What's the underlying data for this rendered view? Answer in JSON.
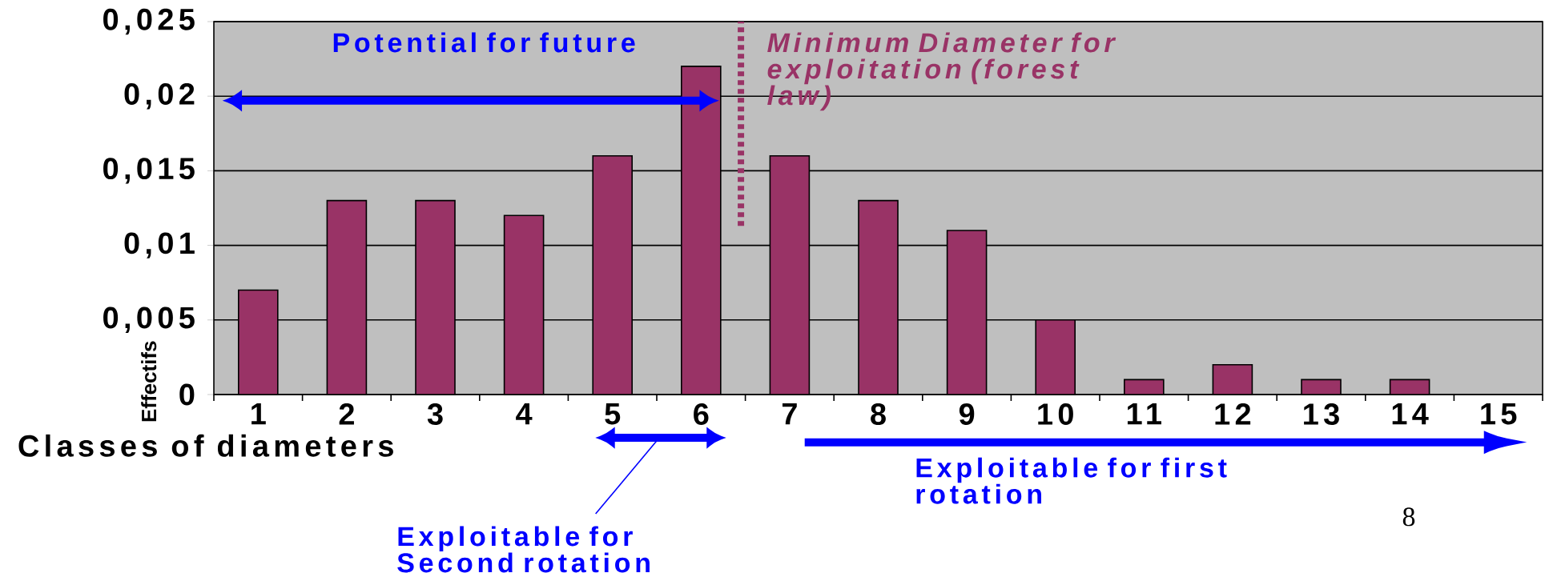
{
  "chart_data": {
    "type": "bar",
    "categories": [
      "1",
      "2",
      "3",
      "4",
      "5",
      "6",
      "7",
      "8",
      "9",
      "10",
      "11",
      "12",
      "13",
      "14",
      "15"
    ],
    "values": [
      0.007,
      0.013,
      0.013,
      0.012,
      0.016,
      0.022,
      0.016,
      0.013,
      0.011,
      0.005,
      0.001,
      0.002,
      0.001,
      0.001,
      null
    ],
    "color": "#993366",
    "xlabel": "Classes of diameters",
    "ylabel": "Effectifs",
    "ylim": [
      0,
      0.025
    ],
    "yticks": [
      {
        "value": 0,
        "label": "0"
      },
      {
        "value": 0.005,
        "label": "0,005"
      },
      {
        "value": 0.01,
        "label": "0,01"
      },
      {
        "value": 0.015,
        "label": "0,015"
      },
      {
        "value": 0.02,
        "label": "0,02"
      },
      {
        "value": 0.025,
        "label": "0,025"
      }
    ],
    "grid": "y",
    "annotations": [
      "Minimum Diameter for exploitation (forest law)",
      "Potential for future",
      "Exploitable for first rotation",
      "Exploitable for Second rotation",
      "8"
    ]
  }
}
